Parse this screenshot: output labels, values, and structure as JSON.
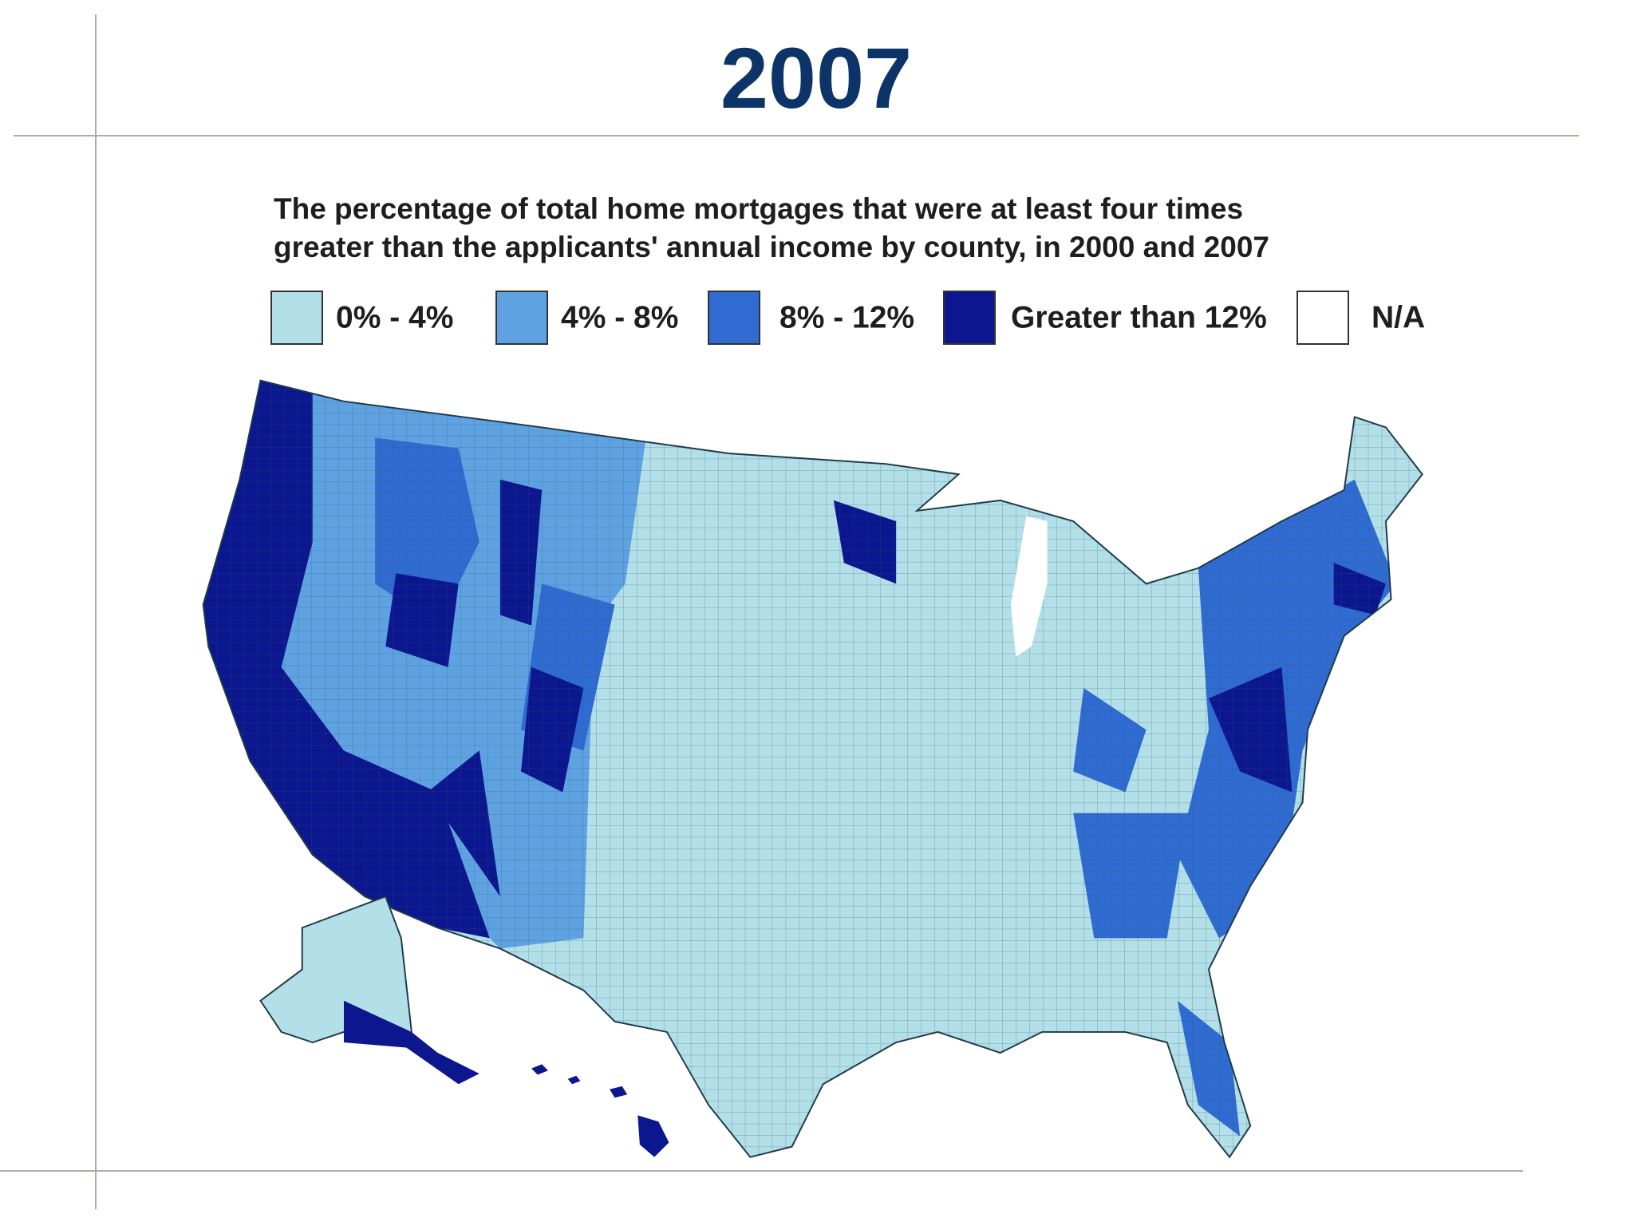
{
  "slide": {
    "title": "2007"
  },
  "map": {
    "title_lines": [
      "The percentage of total home mortgages that were at least four times",
      "greater than the applicants' annual income by county, in 2000 and 2007"
    ],
    "legend": [
      {
        "label": "0% - 4%",
        "color": "#b3dfe8"
      },
      {
        "label": "4% - 8%",
        "color": "#5fa2e2"
      },
      {
        "label": "8% - 12%",
        "color": "#2f6bd0"
      },
      {
        "label": "Greater than 12%",
        "color": "#0b168f"
      },
      {
        "label": "N/A",
        "color": "#ffffff"
      }
    ]
  }
}
